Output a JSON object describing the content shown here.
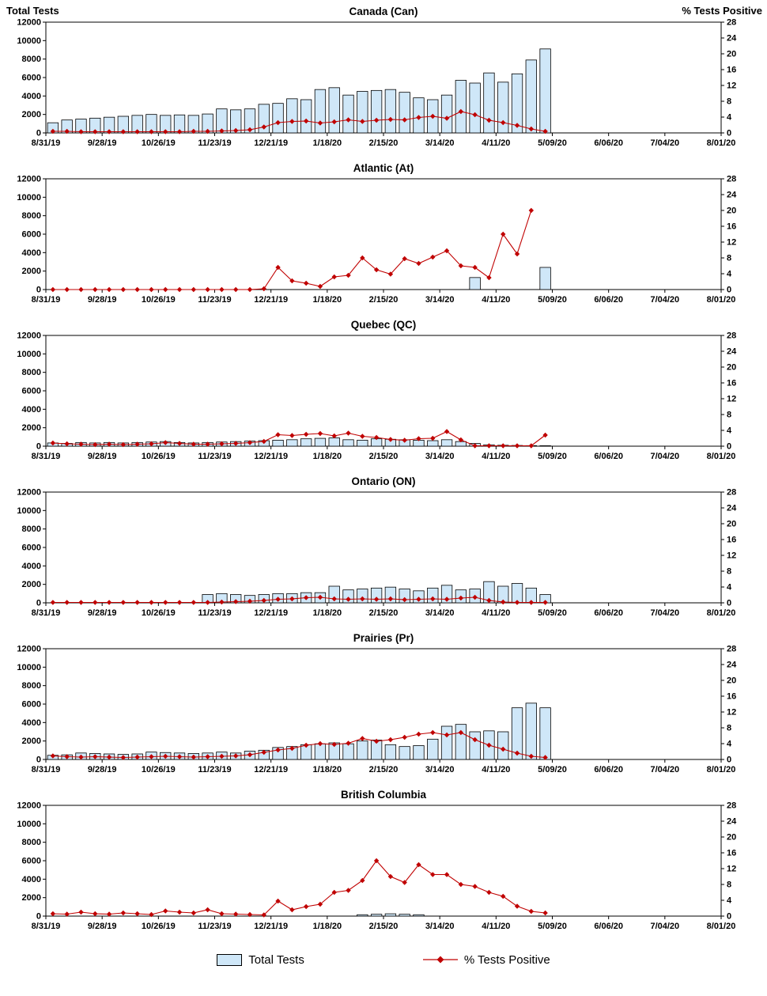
{
  "axis": {
    "y_left": {
      "label": "Total Tests",
      "max": 12000,
      "step": 2000
    },
    "y_right": {
      "label": "% Tests Positive",
      "max": 28,
      "step": 4
    },
    "x_tick_labels": [
      "8/31/19",
      "9/28/19",
      "10/26/19",
      "11/23/19",
      "12/21/19",
      "1/18/20",
      "2/15/20",
      "3/14/20",
      "4/11/20",
      "5/09/20",
      "6/06/20",
      "7/04/20",
      "8/01/20"
    ],
    "weeks_total": 48
  },
  "legend": {
    "total_tests": "Total Tests",
    "pct_positive": "% Tests Positive"
  },
  "colors": {
    "bar_fill": "#cfe7f8",
    "bar_stroke": "#000000",
    "line": "#c00000"
  },
  "week_dates": [
    "8/31/19",
    "9/7/19",
    "9/14/19",
    "9/21/19",
    "9/28/19",
    "10/5/19",
    "10/12/19",
    "10/19/19",
    "10/26/19",
    "11/2/19",
    "11/9/19",
    "11/16/19",
    "11/23/19",
    "11/30/19",
    "12/7/19",
    "12/14/19",
    "12/21/19",
    "12/28/19",
    "1/4/20",
    "1/11/20",
    "1/18/20",
    "1/25/20",
    "2/1/20",
    "2/8/20",
    "2/15/20",
    "2/22/20",
    "2/29/20",
    "3/7/20",
    "3/14/20",
    "3/21/20",
    "3/28/20",
    "4/4/20",
    "4/11/20",
    "4/18/20",
    "4/25/20",
    "5/2/20"
  ],
  "chart_data": [
    {
      "type": "bar+line",
      "title": "Canada (Can)",
      "series": [
        {
          "name": "Total Tests",
          "axis": "left",
          "values": [
            1100,
            1400,
            1500,
            1600,
            1700,
            1800,
            1900,
            2000,
            1900,
            1950,
            1900,
            2050,
            2600,
            2500,
            2600,
            3100,
            3200,
            3700,
            3600,
            4700,
            4900,
            4100,
            4500,
            4600,
            4700,
            4400,
            3800,
            3600,
            4100,
            5700,
            5400,
            6500,
            5500,
            6400,
            7900,
            9100
          ]
        },
        {
          "name": "% Tests Positive",
          "axis": "right",
          "values": [
            0.4,
            0.4,
            0.3,
            0.3,
            0.3,
            0.3,
            0.3,
            0.3,
            0.3,
            0.3,
            0.4,
            0.4,
            0.5,
            0.6,
            0.8,
            1.5,
            2.6,
            2.9,
            3.0,
            2.5,
            2.8,
            3.3,
            2.9,
            3.2,
            3.4,
            3.3,
            3.9,
            4.2,
            3.7,
            5.4,
            4.6,
            3.2,
            2.6,
            1.9,
            1.0,
            0.4
          ]
        }
      ]
    },
    {
      "type": "bar+line",
      "title": "Atlantic (At)",
      "series": [
        {
          "name": "Total Tests",
          "axis": "left",
          "values": [
            0,
            0,
            0,
            0,
            0,
            0,
            0,
            0,
            0,
            0,
            0,
            0,
            0,
            0,
            0,
            0,
            0,
            0,
            0,
            0,
            0,
            0,
            0,
            0,
            0,
            0,
            0,
            0,
            0,
            0,
            1300,
            0,
            0,
            0,
            0,
            2400
          ]
        },
        {
          "name": "% Tests Positive",
          "axis": "right",
          "values": [
            0,
            0,
            0,
            0,
            0,
            0,
            0,
            0,
            0,
            0,
            0,
            0,
            0,
            0,
            0,
            0.2,
            5.6,
            2.2,
            1.6,
            0.8,
            3.2,
            3.6,
            8.0,
            5.0,
            3.9,
            7.8,
            6.6,
            8.2,
            9.8,
            6.0,
            5.6,
            3.0,
            14.0,
            9.0,
            20.0,
            null
          ]
        }
      ]
    },
    {
      "type": "bar+line",
      "title": "Quebec (QC)",
      "series": [
        {
          "name": "Total Tests",
          "axis": "left",
          "values": [
            350,
            300,
            400,
            350,
            400,
            350,
            400,
            450,
            500,
            400,
            350,
            400,
            450,
            500,
            550,
            600,
            650,
            700,
            800,
            850,
            900,
            700,
            650,
            800,
            750,
            700,
            650,
            600,
            700,
            500,
            300,
            150,
            100,
            80,
            60,
            50
          ]
        },
        {
          "name": "% Tests Positive",
          "axis": "right",
          "values": [
            0.8,
            0.6,
            0.5,
            0.4,
            0.5,
            0.4,
            0.5,
            0.6,
            0.9,
            0.7,
            0.5,
            0.5,
            0.6,
            0.7,
            0.9,
            1.2,
            2.9,
            2.7,
            3.0,
            3.2,
            2.6,
            3.3,
            2.5,
            2.2,
            1.7,
            1.5,
            1.9,
            2.0,
            3.7,
            1.6,
            0.1,
            0.1,
            0.1,
            0.1,
            0.1,
            2.8
          ]
        }
      ]
    },
    {
      "type": "bar+line",
      "title": "Ontario (ON)",
      "series": [
        {
          "name": "Total Tests",
          "axis": "left",
          "values": [
            0,
            0,
            0,
            0,
            0,
            0,
            0,
            0,
            0,
            0,
            0,
            900,
            1000,
            900,
            800,
            900,
            1000,
            1000,
            1100,
            1100,
            1800,
            1400,
            1500,
            1600,
            1700,
            1500,
            1300,
            1600,
            1900,
            1400,
            1500,
            2300,
            1800,
            2100,
            1600,
            900
          ]
        },
        {
          "name": "% Tests Positive",
          "axis": "right",
          "values": [
            0.1,
            0.1,
            0.1,
            0.1,
            0.1,
            0.1,
            0.1,
            0.1,
            0.1,
            0.1,
            0.1,
            0.1,
            0.2,
            0.3,
            0.4,
            0.6,
            0.9,
            1.0,
            1.3,
            1.4,
            1.0,
            0.9,
            1.0,
            0.9,
            1.0,
            0.8,
            0.9,
            1.0,
            0.9,
            1.2,
            1.4,
            0.6,
            0.2,
            0.1,
            0.1,
            0.1
          ]
        }
      ]
    },
    {
      "type": "bar+line",
      "title": "Prairies (Pr)",
      "series": [
        {
          "name": "Total Tests",
          "axis": "left",
          "values": [
            450,
            500,
            700,
            650,
            600,
            550,
            600,
            800,
            750,
            700,
            650,
            700,
            800,
            700,
            900,
            1000,
            1300,
            1400,
            1600,
            1700,
            1800,
            1700,
            2000,
            2100,
            1600,
            1400,
            1500,
            2200,
            3600,
            3800,
            3000,
            3100,
            3000,
            5600,
            6100,
            5600
          ]
        },
        {
          "name": "% Tests Positive",
          "axis": "right",
          "values": [
            0.9,
            0.7,
            0.6,
            0.7,
            0.6,
            0.5,
            0.6,
            0.7,
            0.8,
            0.7,
            0.6,
            0.7,
            0.8,
            0.9,
            1.2,
            1.8,
            2.4,
            2.8,
            3.6,
            4.0,
            3.8,
            4.1,
            5.3,
            4.6,
            5.0,
            5.6,
            6.4,
            6.8,
            6.2,
            6.8,
            5.0,
            3.6,
            2.6,
            1.6,
            0.8,
            0.5
          ]
        }
      ]
    },
    {
      "type": "bar+line",
      "title": "British Columbia",
      "series": [
        {
          "name": "Total Tests",
          "axis": "left",
          "values": [
            0,
            0,
            0,
            0,
            0,
            0,
            0,
            0,
            0,
            0,
            0,
            0,
            0,
            0,
            0,
            0,
            0,
            0,
            0,
            0,
            0,
            0,
            150,
            200,
            250,
            200,
            150,
            0,
            0,
            0,
            0,
            0,
            0,
            0,
            0,
            0
          ]
        },
        {
          "name": "% Tests Positive",
          "axis": "right",
          "values": [
            0.6,
            0.5,
            1.0,
            0.6,
            0.5,
            0.8,
            0.6,
            0.4,
            1.3,
            1.0,
            0.8,
            1.6,
            0.6,
            0.5,
            0.4,
            0.3,
            3.8,
            1.6,
            2.4,
            3.0,
            6.0,
            6.5,
            9.0,
            14.0,
            10.0,
            8.5,
            13.0,
            10.5,
            10.5,
            8.0,
            7.5,
            6.0,
            5.0,
            2.5,
            1.2,
            0.8
          ]
        }
      ]
    }
  ]
}
